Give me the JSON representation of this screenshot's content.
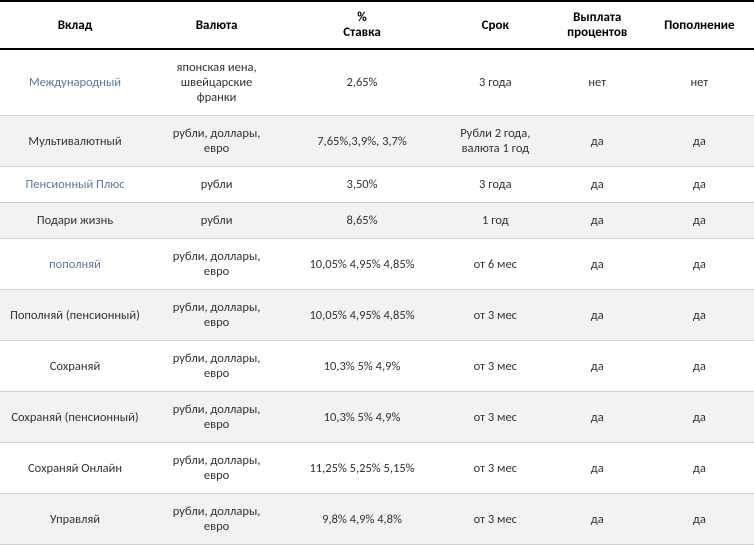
{
  "table": {
    "columns": [
      "Вклад",
      "Валюта",
      "%\nСтавка",
      "Срок",
      "Выплата\nпроцентов",
      "Пополнение"
    ],
    "rows": [
      {
        "name": "Международный",
        "nameIsLink": true,
        "currency": "японская иена,\nшвейцарские\nфранки",
        "rate": "2,65%",
        "term": "3 года",
        "interest": "нет",
        "topup": "нет"
      },
      {
        "name": "Мультивалютный",
        "nameIsLink": false,
        "currency": "рубли, доллары,\nевро",
        "rate": "7,65%,3,9%, 3,7%",
        "term": "Рубли 2 года,\nвалюта 1 год",
        "interest": "да",
        "topup": "да"
      },
      {
        "name": "Пенсионный Плюс",
        "nameIsLink": true,
        "currency": "рубли",
        "rate": "3,50%",
        "term": "3 года",
        "interest": "да",
        "topup": "да"
      },
      {
        "name": "Подари жизнь",
        "nameIsLink": false,
        "currency": "рубли",
        "rate": "8,65%",
        "term": "1 год",
        "interest": "да",
        "topup": "да"
      },
      {
        "name": "пополняй",
        "nameIsLink": true,
        "currency": "рубли, доллары,\nевро",
        "rate": "10,05% 4,95% 4,85%",
        "term": "от 6 мес",
        "interest": "да",
        "topup": "да"
      },
      {
        "name": "Пополняй (пенсионный)",
        "nameIsLink": false,
        "currency": "рубли, доллары,\nевро",
        "rate": "10,05% 4,95% 4,85%",
        "term": "от 3 мес",
        "interest": "да",
        "topup": "да"
      },
      {
        "name": "Сохраняй",
        "nameIsLink": false,
        "currency": "рубли, доллары,\nевро",
        "rate": "10,3% 5% 4,9%",
        "term": "от 3 мес",
        "interest": "да",
        "topup": "да"
      },
      {
        "name": "Сохраняй (пенсионный)",
        "nameIsLink": false,
        "currency": "рубли, доллары,\nевро",
        "rate": "10,3% 5% 4,9%",
        "term": "от 3 мес",
        "interest": "да",
        "topup": "да"
      },
      {
        "name": "Сохраняй Онлайн",
        "nameIsLink": false,
        "currency": "рубли, доллары,\nевро",
        "rate": "11,25% 5,25% 5,15%",
        "term": "от 3 мес",
        "interest": "да",
        "topup": "да"
      },
      {
        "name": "Управляй",
        "nameIsLink": false,
        "currency": "рубли, доллары,\nевро",
        "rate": "9,8% 4,9% 4,8%",
        "term": "от 3 мес",
        "interest": "да",
        "topup": "да"
      }
    ],
    "styling": {
      "header_border_color": "#000000",
      "row_border_color": "#d0d0d0",
      "alt_row_bg": "#f2f2f2",
      "link_color": "#5b7a9d",
      "text_color": "#333333",
      "font_family": "Calibri",
      "header_fontsize": 13,
      "cell_fontsize": 12.5
    }
  }
}
